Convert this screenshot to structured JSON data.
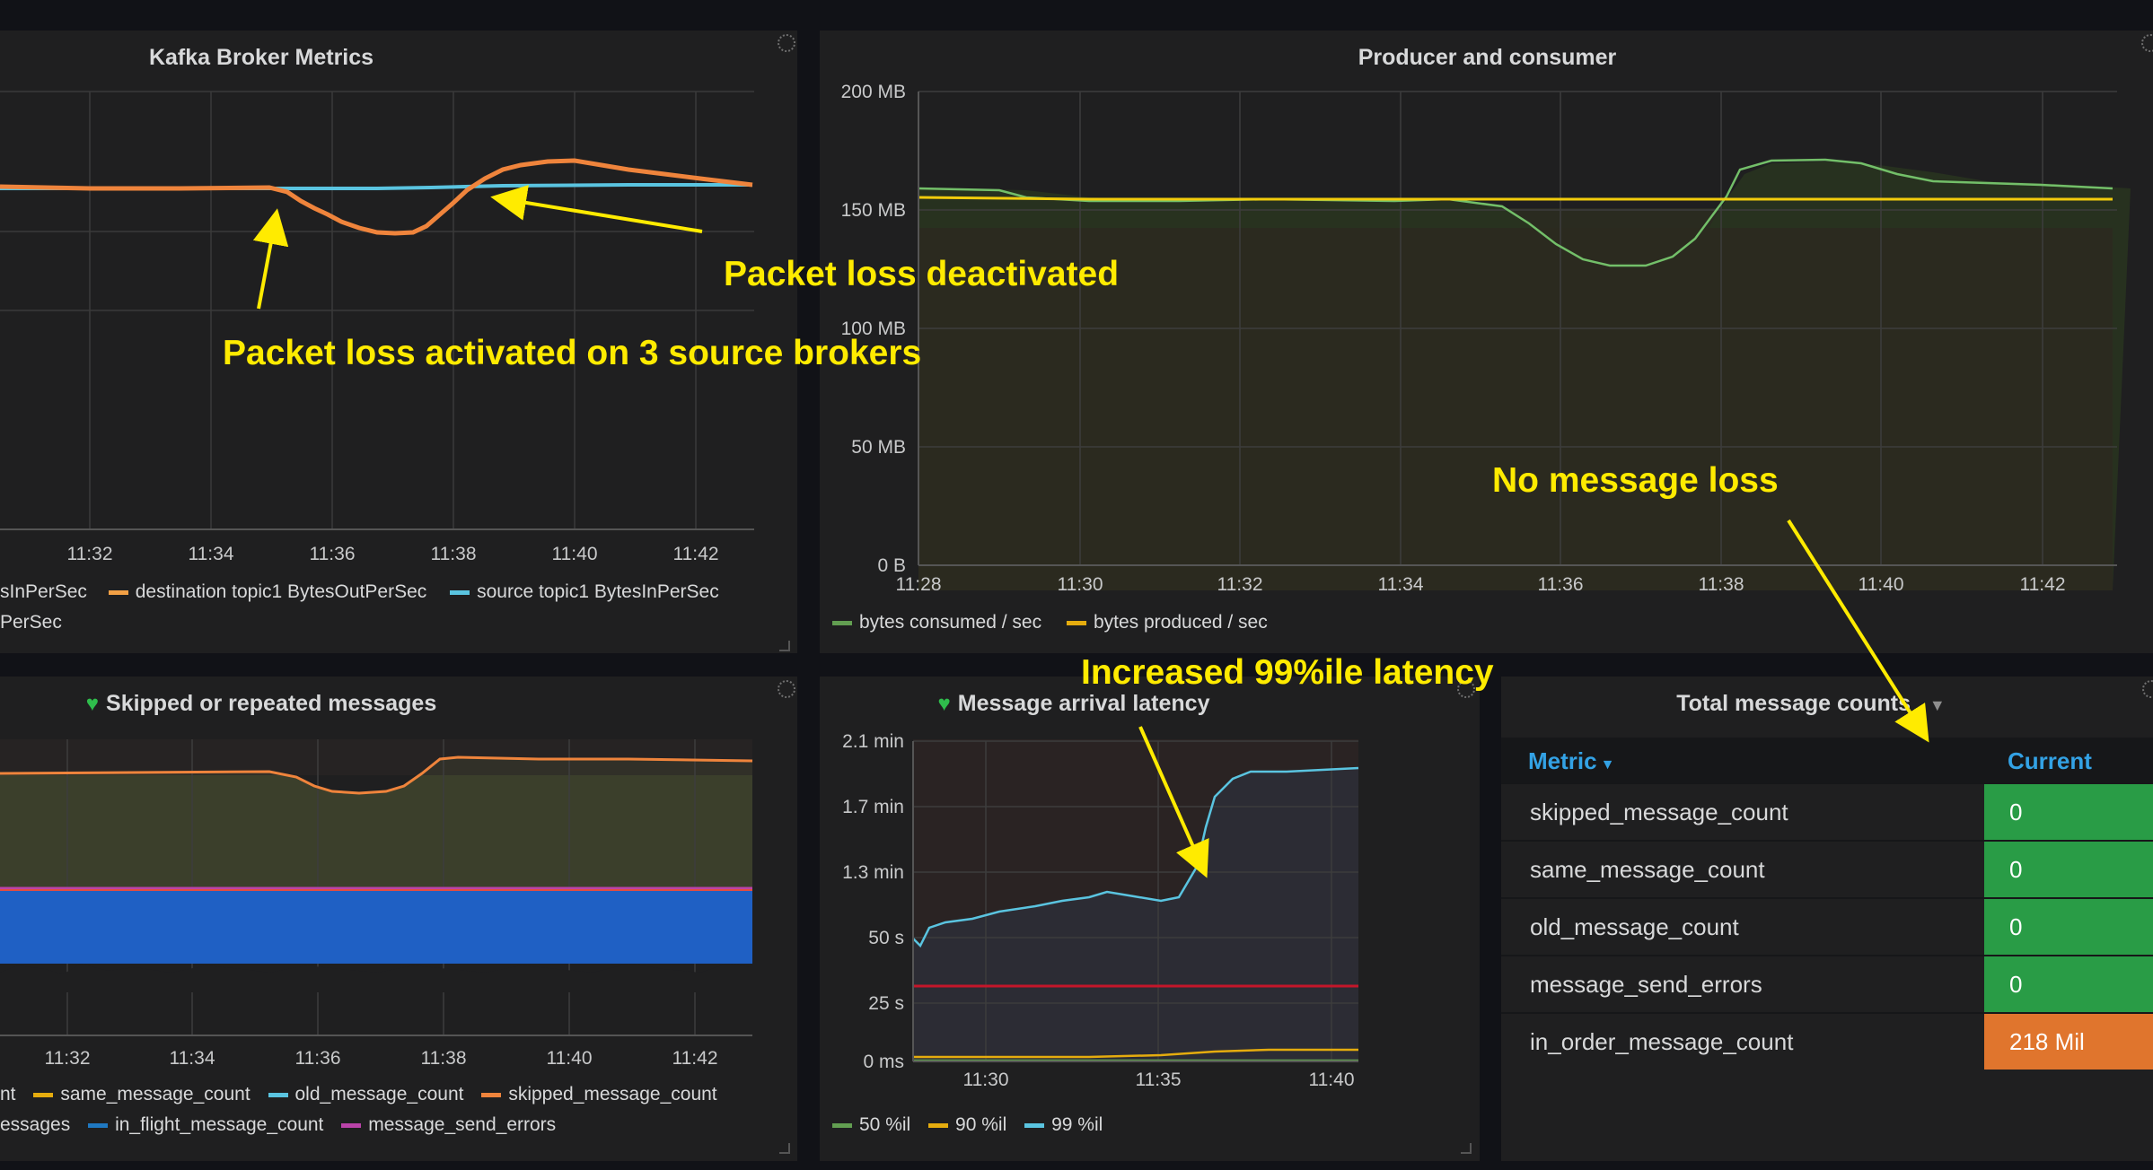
{
  "panels": {
    "kafka": {
      "title": "Kafka Broker Metrics",
      "x_ticks": [
        "11:32",
        "11:34",
        "11:36",
        "11:38",
        "11:40",
        "11:42"
      ],
      "legend": [
        {
          "label": "sInPerSec",
          "color": ""
        },
        {
          "label": "destination topic1 BytesOutPerSec",
          "color": "#f2a045"
        },
        {
          "label": "source topic1 BytesInPerSec",
          "color": "#5ac4e0"
        },
        {
          "label": "PerSec",
          "color": ""
        }
      ]
    },
    "producer": {
      "title": "Producer and consumer",
      "y_ticks": [
        "200 MB",
        "150 MB",
        "100 MB",
        "50 MB",
        "0 B"
      ],
      "x_ticks": [
        "11:28",
        "11:30",
        "11:32",
        "11:34",
        "11:36",
        "11:38",
        "11:40",
        "11:42"
      ],
      "legend": [
        {
          "label": "bytes consumed / sec",
          "color": "#629e51"
        },
        {
          "label": "bytes produced / sec",
          "color": "#e5ac0e"
        }
      ]
    },
    "skipped": {
      "title": "Skipped or repeated messages",
      "x_ticks": [
        "11:32",
        "11:34",
        "11:36",
        "11:38",
        "11:40",
        "11:42"
      ],
      "legend_row1": [
        {
          "label": "nt",
          "color": ""
        },
        {
          "label": "same_message_count",
          "color": "#e5ac0e"
        },
        {
          "label": "old_message_count",
          "color": "#5ac4e0"
        },
        {
          "label": "skipped_message_count",
          "color": "#ef843c"
        }
      ],
      "legend_row2": [
        {
          "label": "essages",
          "color": ""
        },
        {
          "label": "in_flight_message_count",
          "color": "#1f78c1"
        },
        {
          "label": "message_send_errors",
          "color": "#ba43a9"
        }
      ]
    },
    "latency": {
      "title": "Message arrival latency",
      "y_ticks": [
        "2.1 min",
        "1.7 min",
        "1.3 min",
        "50 s",
        "25 s",
        "0 ms"
      ],
      "x_ticks": [
        "11:30",
        "11:35",
        "11:40"
      ],
      "legend": [
        {
          "label": "50 %il",
          "color": "#629e51"
        },
        {
          "label": "90 %il",
          "color": "#e5ac0e"
        },
        {
          "label": "99 %il",
          "color": "#5ac4e0"
        }
      ]
    },
    "totals": {
      "title": "Total message counts",
      "col_metric": "Metric",
      "col_current": "Current",
      "rows": [
        {
          "metric": "skipped_message_count",
          "current": "0",
          "color": "#299c46"
        },
        {
          "metric": "same_message_count",
          "current": "0",
          "color": "#299c46"
        },
        {
          "metric": "old_message_count",
          "current": "0",
          "color": "#299c46"
        },
        {
          "metric": "message_send_errors",
          "current": "0",
          "color": "#299c46"
        },
        {
          "metric": "in_order_message_count",
          "current": "218 Mil",
          "color": "#e0752d"
        }
      ]
    }
  },
  "annotations": {
    "activated": "Packet loss activated on 3 source brokers",
    "deactivated": "Packet loss deactivated",
    "no_loss": "No message loss",
    "latency": "Increased 99%ile latency"
  },
  "colors": {
    "annotation": "#ffeb00",
    "panel_bg": "#1f1f20",
    "page_bg": "#111217"
  }
}
